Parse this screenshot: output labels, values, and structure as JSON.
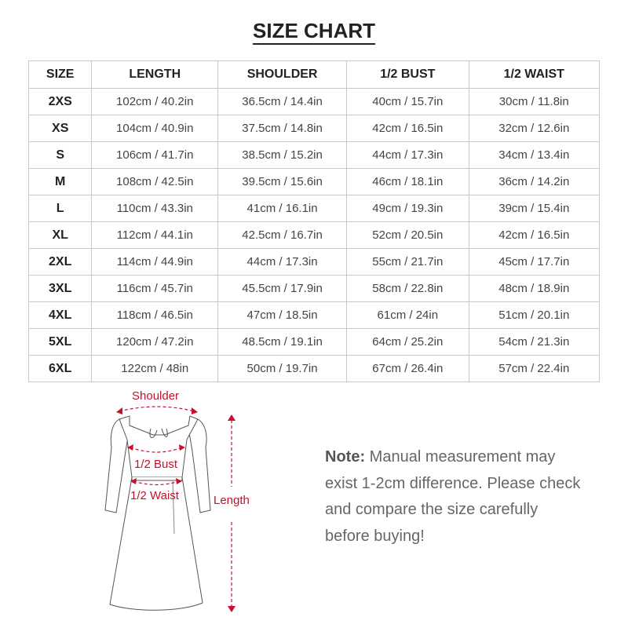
{
  "title": "SIZE CHART",
  "table": {
    "headers": [
      "SIZE",
      "LENGTH",
      "SHOULDER",
      "1/2 BUST",
      "1/2 WAIST"
    ],
    "rows": [
      [
        "2XS",
        "102cm / 40.2in",
        "36.5cm / 14.4in",
        "40cm / 15.7in",
        "30cm / 11.8in"
      ],
      [
        "XS",
        "104cm / 40.9in",
        "37.5cm / 14.8in",
        "42cm / 16.5in",
        "32cm / 12.6in"
      ],
      [
        "S",
        "106cm / 41.7in",
        "38.5cm / 15.2in",
        "44cm / 17.3in",
        "34cm / 13.4in"
      ],
      [
        "M",
        "108cm / 42.5in",
        "39.5cm / 15.6in",
        "46cm / 18.1in",
        "36cm / 14.2in"
      ],
      [
        "L",
        "110cm / 43.3in",
        "41cm / 16.1in",
        "49cm / 19.3in",
        "39cm / 15.4in"
      ],
      [
        "XL",
        "112cm / 44.1in",
        "42.5cm / 16.7in",
        "52cm / 20.5in",
        "42cm / 16.5in"
      ],
      [
        "2XL",
        "114cm / 44.9in",
        "44cm / 17.3in",
        "55cm / 21.7in",
        "45cm / 17.7in"
      ],
      [
        "3XL",
        "116cm / 45.7in",
        "45.5cm / 17.9in",
        "58cm / 22.8in",
        "48cm / 18.9in"
      ],
      [
        "4XL",
        "118cm / 46.5in",
        "47cm / 18.5in",
        "61cm / 24in",
        "51cm / 20.1in"
      ],
      [
        "5XL",
        "120cm / 47.2in",
        "48.5cm / 19.1in",
        "64cm / 25.2in",
        "54cm / 21.3in"
      ],
      [
        "6XL",
        "122cm / 48in",
        "50cm / 19.7in",
        "67cm / 26.4in",
        "57cm / 22.4in"
      ]
    ]
  },
  "diagram": {
    "labels": {
      "shoulder": "Shoulder",
      "bust": "1/2 Bust",
      "waist": "1/2 Waist",
      "length": "Length"
    },
    "accent_color": "#c8102e"
  },
  "note": {
    "label": "Note:",
    "text": " Manual measurement may exist 1-2cm difference. Please check and compare the size carefully before buying!"
  }
}
